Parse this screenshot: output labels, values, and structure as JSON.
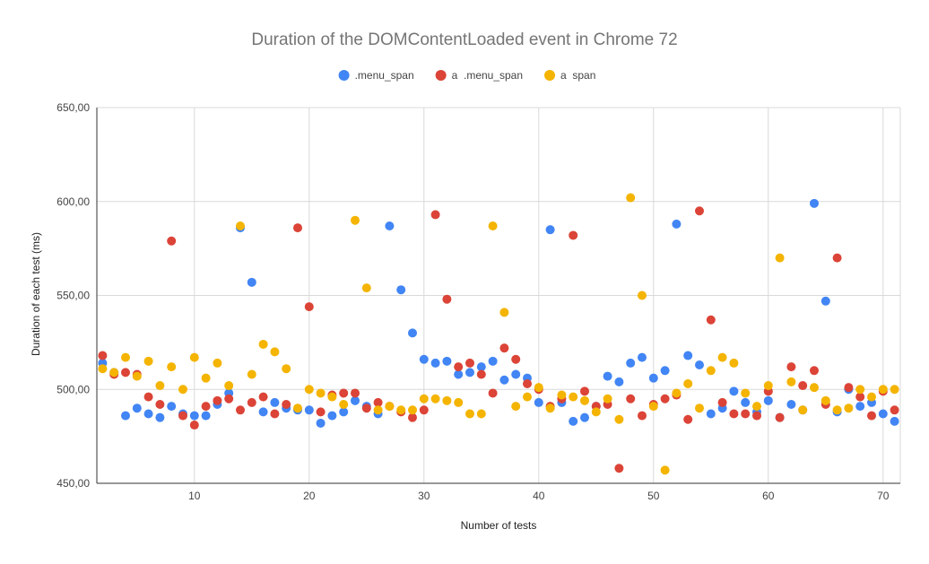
{
  "chart_data": {
    "type": "scatter",
    "title": "Duration of the DOMContentLoaded event in Chrome 72",
    "xlabel": "Number of tests",
    "ylabel": "Duration of each test (ms)",
    "xlim": [
      1.5,
      71.5
    ],
    "ylim": [
      450,
      650
    ],
    "x_ticks": [
      10,
      20,
      30,
      40,
      50,
      60,
      70
    ],
    "x_tick_labels": [
      "10",
      "20",
      "30",
      "40",
      "50",
      "60",
      "70"
    ],
    "y_ticks": [
      450,
      500,
      550,
      600,
      650
    ],
    "y_tick_labels": [
      "450,00",
      "500,00",
      "550,00",
      "600,00",
      "650,00"
    ],
    "grid": true,
    "legend_position": "top",
    "x": [
      2,
      3,
      4,
      5,
      6,
      7,
      8,
      9,
      10,
      11,
      12,
      13,
      14,
      15,
      16,
      17,
      18,
      19,
      20,
      21,
      22,
      23,
      24,
      25,
      26,
      27,
      28,
      29,
      30,
      31,
      32,
      33,
      34,
      35,
      36,
      37,
      38,
      39,
      40,
      41,
      42,
      43,
      44,
      45,
      46,
      47,
      48,
      49,
      50,
      51,
      52,
      53,
      54,
      55,
      56,
      57,
      58,
      59,
      60,
      61,
      62,
      63,
      64,
      65,
      66,
      67,
      68,
      69,
      70,
      71
    ],
    "series": [
      {
        "name": ".menu_span",
        "color": "#4285f4",
        "values": [
          514,
          509,
          486,
          490,
          487,
          485,
          491,
          487,
          486,
          486,
          492,
          498,
          586,
          557,
          488,
          493,
          490,
          489,
          489,
          482,
          486,
          488,
          494,
          491,
          487,
          587,
          553,
          530,
          516,
          514,
          515,
          508,
          509,
          512,
          515,
          505,
          508,
          506,
          493,
          585,
          493,
          483,
          485,
          491,
          507,
          504,
          514,
          517,
          506,
          510,
          588,
          518,
          513,
          487,
          490,
          499,
          493,
          488,
          494,
          485,
          492,
          489,
          599,
          547,
          488,
          500,
          491,
          493,
          487,
          483
        ]
      },
      {
        "name": "a  .menu_span",
        "color": "#db4437",
        "values": [
          518,
          508,
          509,
          508,
          496,
          492,
          579,
          486,
          481,
          491,
          494,
          495,
          489,
          493,
          496,
          487,
          492,
          586,
          544,
          488,
          497,
          498,
          498,
          490,
          493,
          491,
          488,
          485,
          489,
          593,
          548,
          512,
          514,
          508,
          498,
          522,
          516,
          503,
          500,
          491,
          495,
          582,
          499,
          491,
          492,
          458,
          495,
          486,
          492,
          495,
          497,
          484,
          595,
          537,
          493,
          487,
          487,
          486,
          499,
          485,
          512,
          502,
          510,
          492,
          570,
          501,
          496,
          486,
          499,
          489
        ]
      },
      {
        "name": "a  span",
        "color": "#f4b400",
        "values": [
          511,
          509,
          517,
          507,
          515,
          502,
          512,
          500,
          517,
          506,
          514,
          502,
          587,
          508,
          524,
          520,
          511,
          490,
          500,
          498,
          496,
          492,
          590,
          554,
          489,
          491,
          489,
          489,
          495,
          495,
          494,
          493,
          487,
          487,
          587,
          541,
          491,
          496,
          501,
          490,
          497,
          496,
          494,
          488,
          495,
          484,
          602,
          550,
          491,
          457,
          498,
          503,
          490,
          510,
          517,
          514,
          498,
          491,
          502,
          570,
          504,
          489,
          501,
          494,
          489,
          490,
          500,
          496,
          500,
          500
        ]
      }
    ]
  }
}
